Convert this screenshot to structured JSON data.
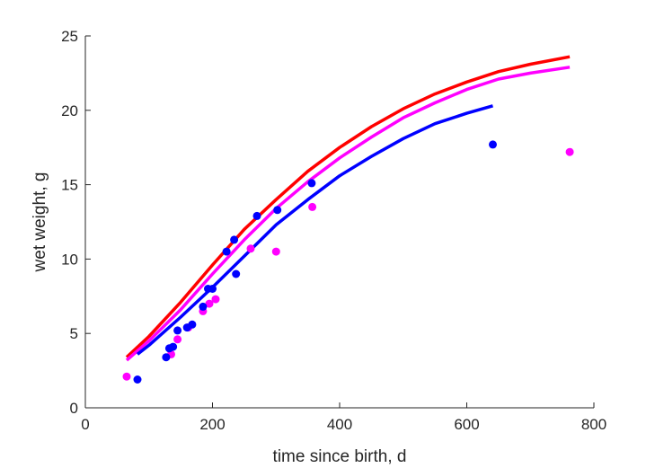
{
  "chart_data": {
    "type": "scatter",
    "title": "",
    "xlabel": "time since birth, d",
    "ylabel": "wet weight, g",
    "xlim": [
      0,
      800
    ],
    "ylim": [
      0,
      25
    ],
    "xticks": [
      0,
      200,
      400,
      600,
      800
    ],
    "yticks": [
      0,
      5,
      10,
      15,
      20,
      25
    ],
    "grid": false,
    "legend": "none",
    "series": [
      {
        "kind": "curve",
        "color": "#ff0000",
        "x": [
          65,
          100,
          150,
          200,
          250,
          300,
          350,
          400,
          450,
          500,
          550,
          600,
          650,
          700,
          762
        ],
        "y": [
          3.4,
          4.8,
          7.1,
          9.6,
          12.0,
          14.0,
          15.9,
          17.5,
          18.9,
          20.1,
          21.1,
          21.9,
          22.6,
          23.1,
          23.6
        ]
      },
      {
        "kind": "curve",
        "color": "#ff00ff",
        "x": [
          65,
          100,
          150,
          200,
          250,
          300,
          350,
          400,
          450,
          500,
          550,
          600,
          650,
          700,
          762
        ],
        "y": [
          3.2,
          4.5,
          6.6,
          9.0,
          11.3,
          13.4,
          15.2,
          16.8,
          18.2,
          19.5,
          20.5,
          21.4,
          22.1,
          22.5,
          22.9
        ]
      },
      {
        "kind": "curve",
        "color": "#0000ff",
        "x": [
          82,
          100,
          150,
          200,
          250,
          300,
          350,
          400,
          450,
          500,
          550,
          600,
          641
        ],
        "y": [
          3.6,
          4.2,
          6.1,
          8.1,
          10.2,
          12.3,
          14.0,
          15.6,
          16.9,
          18.1,
          19.1,
          19.8,
          20.3
        ]
      },
      {
        "kind": "points",
        "color": "#ff00ff",
        "x": [
          65,
          135,
          145,
          162,
          185,
          195,
          205,
          260,
          300,
          357,
          762
        ],
        "y": [
          2.1,
          3.6,
          4.6,
          5.4,
          6.5,
          7.0,
          7.3,
          10.7,
          10.5,
          13.5,
          17.2
        ]
      },
      {
        "kind": "points",
        "color": "#0000ff",
        "x": [
          82,
          127,
          132,
          138,
          145,
          160,
          168,
          185,
          193,
          200,
          222,
          234,
          237,
          270,
          302,
          356,
          641
        ],
        "y": [
          1.9,
          3.4,
          4.0,
          4.1,
          5.2,
          5.4,
          5.6,
          6.8,
          8.0,
          8.0,
          10.5,
          11.3,
          9.0,
          12.9,
          13.3,
          15.1,
          17.7
        ]
      }
    ]
  }
}
